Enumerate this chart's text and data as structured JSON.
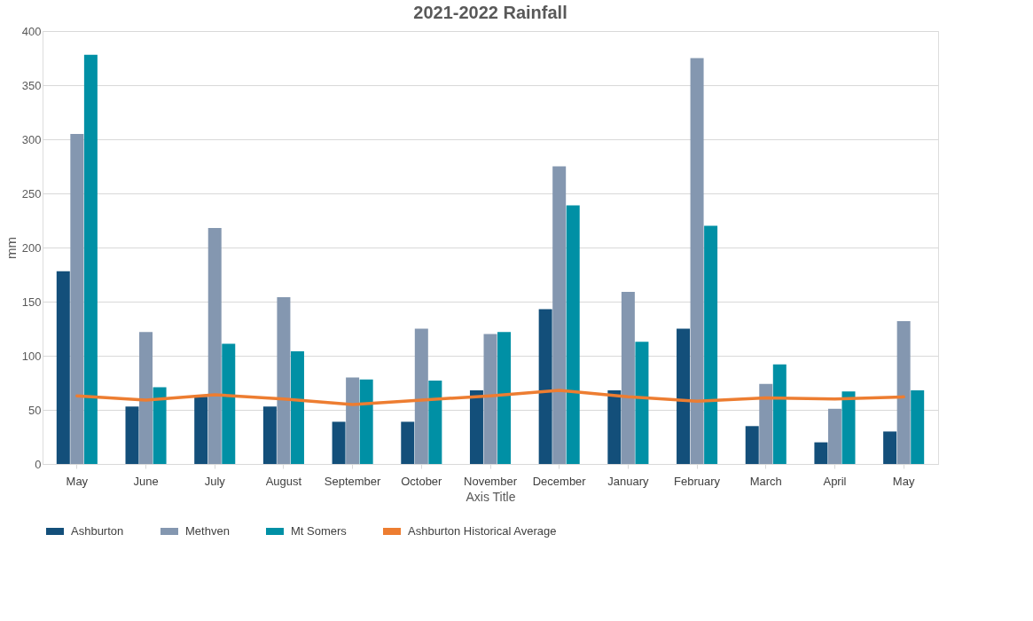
{
  "chart_data": {
    "type": "bar",
    "title": "2021-2022 Rainfall",
    "xlabel": "Axis Title",
    "ylabel": "mm",
    "categories": [
      "May",
      "June",
      "July",
      "August",
      "September",
      "October",
      "November",
      "December",
      "January",
      "February",
      "March",
      "April",
      "May"
    ],
    "series": [
      {
        "name": "Ashburton",
        "color": "#134f7a",
        "values": [
          178,
          53,
          62,
          53,
          39,
          39,
          68,
          143,
          68,
          125,
          35,
          20,
          30
        ]
      },
      {
        "name": "Methven",
        "color": "#8497b0",
        "values": [
          305,
          122,
          218,
          154,
          80,
          125,
          120,
          275,
          159,
          375,
          74,
          51,
          132
        ]
      },
      {
        "name": "Mt Somers",
        "color": "#0090a5",
        "values": [
          378,
          71,
          111,
          104,
          78,
          77,
          122,
          239,
          113,
          220,
          92,
          67,
          68
        ]
      },
      {
        "name": "Ashburton Historical Average",
        "type": "line",
        "color": "#ed7d31",
        "values": [
          63,
          59,
          64,
          60,
          55,
          59,
          63,
          68,
          62,
          58,
          61,
          60,
          62
        ]
      }
    ],
    "ylim": [
      0,
      400
    ],
    "yticks": [
      0,
      50,
      100,
      150,
      200,
      250,
      300,
      350,
      400
    ],
    "grid": "y",
    "legend": "bottom",
    "marker": "none",
    "line_style": "solid"
  }
}
